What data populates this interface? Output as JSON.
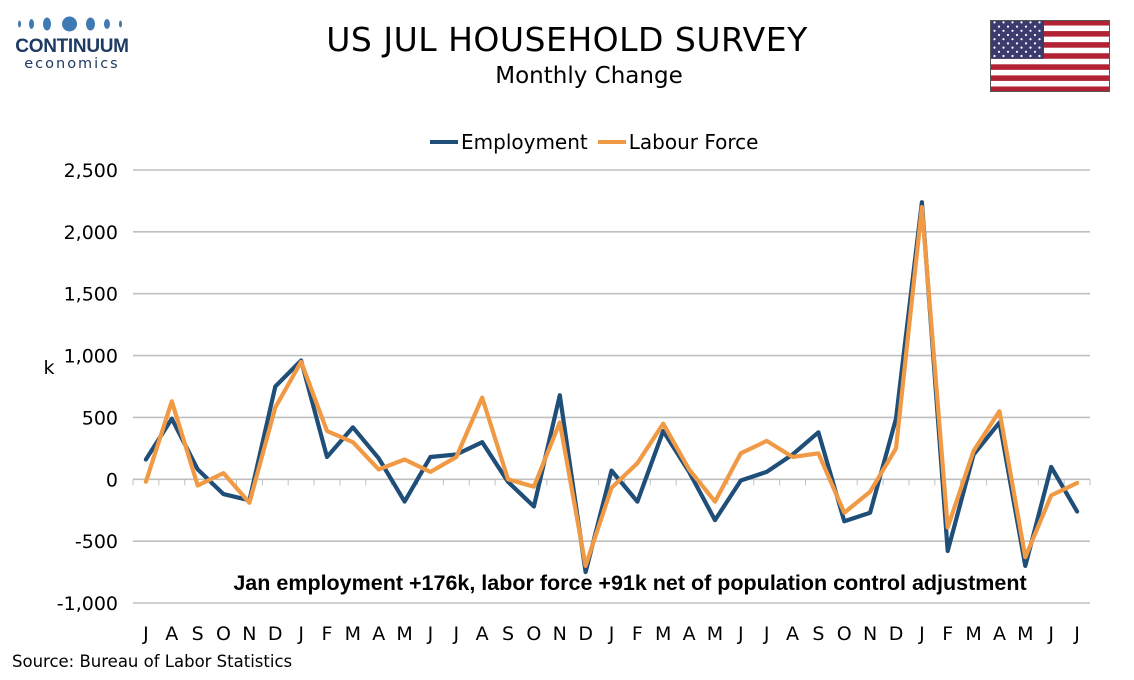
{
  "logo": {
    "name": "CONTINUUM",
    "sub": "economics"
  },
  "header": {
    "title": "US JUL HOUSEHOLD SURVEY",
    "subtitle": "Monthly Change"
  },
  "colors": {
    "employment": "#1f4e79",
    "labour_force": "#f19a45",
    "grid": "#bfbfbf",
    "logo": "#1f3b63"
  },
  "icons": {
    "flag": "us-flag-icon"
  },
  "footer": {
    "source": "Source: Bureau of Labor Statistics"
  },
  "chart_data": {
    "type": "line",
    "title": "US JUL HOUSEHOLD SURVEY",
    "subtitle": "Monthly Change",
    "ylabel": "k",
    "xlabel": "",
    "ylim": [
      -1000,
      2500
    ],
    "yticks": [
      2500,
      2000,
      1500,
      1000,
      500,
      0,
      -500,
      -1000
    ],
    "ytick_labels": [
      "2,500",
      "2,000",
      "1,500",
      "1,000",
      "500",
      "0",
      "-500",
      "-1,000"
    ],
    "grid": true,
    "legend_position": "top-center",
    "categories": [
      "J",
      "A",
      "S",
      "O",
      "N",
      "D",
      "J",
      "F",
      "M",
      "A",
      "M",
      "J",
      "J",
      "A",
      "S",
      "O",
      "N",
      "D",
      "J",
      "F",
      "M",
      "A",
      "M",
      "J",
      "J",
      "A",
      "S",
      "O",
      "N",
      "D",
      "J",
      "F",
      "M",
      "A",
      "M",
      "J",
      "J"
    ],
    "series": [
      {
        "name": "Employment",
        "values": [
          160,
          490,
          80,
          -120,
          -170,
          750,
          960,
          180,
          420,
          170,
          -180,
          180,
          200,
          300,
          -20,
          -220,
          680,
          -750,
          70,
          -180,
          390,
          60,
          -330,
          -10,
          60,
          200,
          380,
          -340,
          -270,
          490,
          2240,
          -580,
          200,
          460,
          -700,
          100,
          -260
        ]
      },
      {
        "name": "Labour Force",
        "values": [
          -20,
          630,
          -50,
          50,
          -190,
          580,
          950,
          390,
          300,
          80,
          160,
          60,
          180,
          660,
          0,
          -60,
          460,
          -700,
          -70,
          130,
          450,
          80,
          -180,
          210,
          310,
          180,
          210,
          -270,
          -100,
          250,
          2200,
          -390,
          230,
          550,
          -630,
          -130,
          -30
        ]
      }
    ],
    "annotations": [
      "Jan employment +176k, labor force +91k net of population control adjustment"
    ]
  }
}
